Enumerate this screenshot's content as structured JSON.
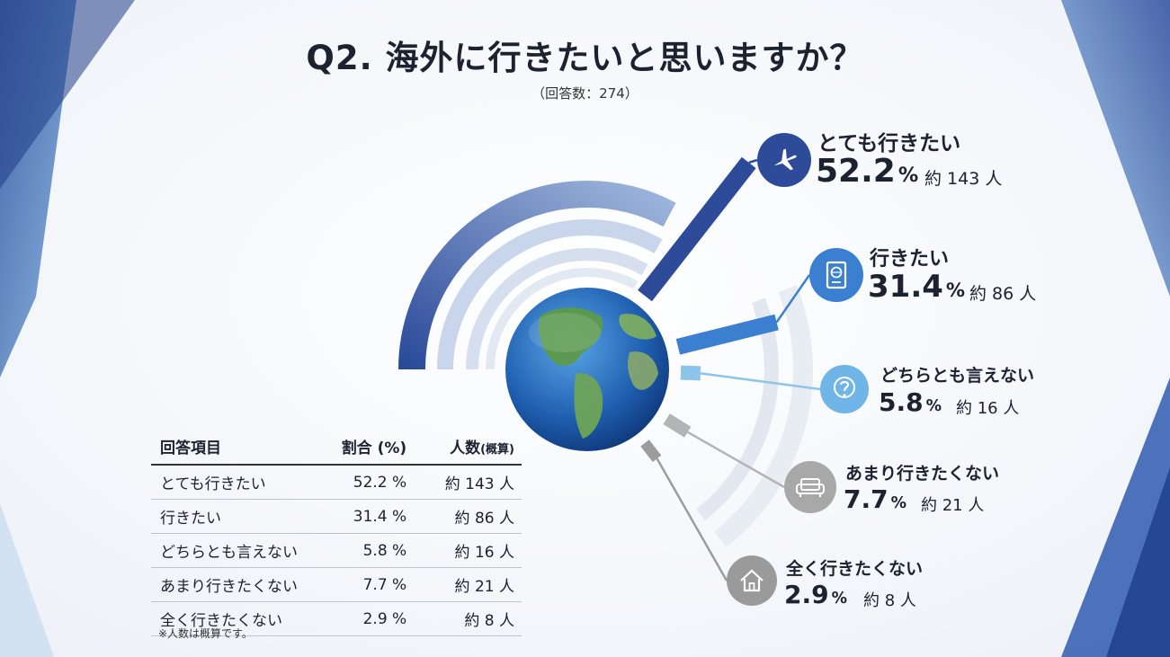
{
  "title": "Q2. 海外に行きたいと思いますか？",
  "subtitle": "（回答数：274）",
  "chart_data": {
    "type": "bar",
    "categories": [
      "とても行きたい",
      "行きたい",
      "どちらとも言えない",
      "あまり行きたくない",
      "全く行きたくない"
    ],
    "values": [
      52.2,
      31.4,
      5.8,
      7.7,
      2.9
    ],
    "counts": [
      "約 143 人",
      "約 86 人",
      "約 16 人",
      "約 21 人",
      "約 8 人"
    ],
    "pct_labels": [
      "52.2",
      "31.4",
      "5.8",
      "7.7",
      "2.9"
    ],
    "unit": "%",
    "colors": [
      "#2e4b9a",
      "#3a7fd0",
      "#8cc4ec",
      "#b4b4b4",
      "#9c9c9c"
    ]
  },
  "callouts": [
    {
      "label": "とても行きたい",
      "pct": "52.2",
      "unit": "%",
      "count": "約 143 人",
      "icon": "airplane-icon",
      "color": "#2e4b9a"
    },
    {
      "label": "行きたい",
      "pct": "31.4",
      "unit": "%",
      "count": "約 86 人",
      "icon": "passport-icon",
      "color": "#3a7fd0"
    },
    {
      "label": "どちらとも言えない",
      "pct": "5.8",
      "unit": "%",
      "count": "約 16 人",
      "icon": "question-icon",
      "color": "#6fb5e8"
    },
    {
      "label": "あまり行きたくない",
      "pct": "7.7",
      "unit": "%",
      "count": "約 21 人",
      "icon": "sofa-icon",
      "color": "#a8a8a8"
    },
    {
      "label": "全く行きたくない",
      "pct": "2.9",
      "unit": "%",
      "count": "約 8 人",
      "icon": "house-icon",
      "color": "#9a9a9a"
    }
  ],
  "table": {
    "headers": [
      "回答項目",
      "割合 (%)",
      "人数",
      "(概算)"
    ],
    "rows": [
      [
        "とても行きたい",
        "52.2 %",
        "約 143 人"
      ],
      [
        "行きたい",
        "31.4 %",
        "約 86 人"
      ],
      [
        "どちらとも言えない",
        "5.8 %",
        "約 16 人"
      ],
      [
        "あまり行きたくない",
        "7.7 %",
        "約 21 人"
      ],
      [
        "全く行きたくない",
        "2.9 %",
        "約 8 人"
      ]
    ]
  },
  "footnote": "※人数は概算です。"
}
